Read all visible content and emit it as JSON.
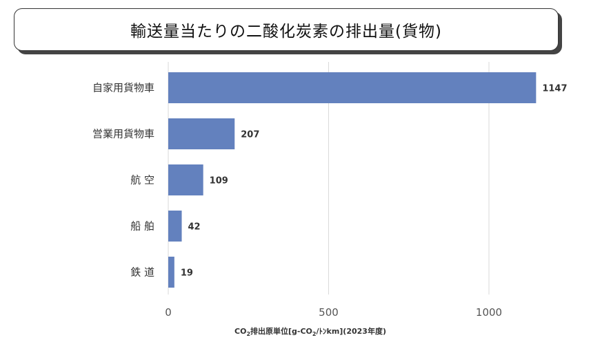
{
  "title": "輸送量当たりの二酸化炭素の排出量(貨物)",
  "chart_data": {
    "type": "bar",
    "orientation": "horizontal",
    "categories": [
      "自家用貨物車",
      "営業用貨物車",
      "航 空",
      "船 舶",
      "鉄 道"
    ],
    "values": [
      1147,
      207,
      109,
      42,
      19
    ],
    "value_labels": [
      "1147",
      "207",
      "109",
      "42",
      "19"
    ],
    "xlim": [
      0,
      1200
    ],
    "xticks": [
      0,
      500,
      1000
    ],
    "xtick_labels": [
      "0",
      "500",
      "1000"
    ],
    "xlabel": {
      "prefix": "CO",
      "sub1": "2",
      "middle": "排出原単位[g-CO",
      "sub2": "2",
      "suffix": "/ﾄﾝkm](2023年度)"
    },
    "grid": true,
    "bar_color": "#6381BE",
    "grid_color": "#D9D9D9"
  }
}
